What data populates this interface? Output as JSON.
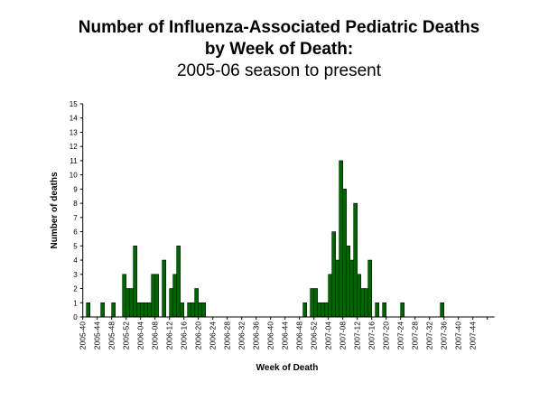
{
  "chart_data": {
    "type": "bar",
    "title": [
      "Number of Influenza-Associated Pediatric Deaths",
      "by Week of Death:"
    ],
    "subtitle": "2005-06 season to present",
    "xlabel": "Week of Death",
    "ylabel": "Number of deaths",
    "ylim": [
      0,
      15
    ],
    "y_ticks": [
      0,
      1,
      2,
      3,
      4,
      5,
      6,
      7,
      8,
      9,
      10,
      11,
      12,
      13,
      14,
      15
    ],
    "grid": false,
    "bar_color": "#006600",
    "x_tick_labels": [
      "2005-40",
      "2005-44",
      "2005-48",
      "2005-52",
      "2006-04",
      "2006-08",
      "2006-12",
      "2006-16",
      "2006-20",
      "2006-24",
      "2006-28",
      "2006-32",
      "2006-36",
      "2006-40",
      "2006-44",
      "2006-48",
      "2006-52",
      "2007-04",
      "2007-08",
      "2007-12",
      "2007-16",
      "2007-20",
      "2007-24",
      "2007-28",
      "2007-32",
      "2007-36",
      "2007-40",
      "2007-44"
    ],
    "weeks": [
      "2005-40",
      "2005-41",
      "2005-42",
      "2005-43",
      "2005-44",
      "2005-45",
      "2005-46",
      "2005-47",
      "2005-48",
      "2005-49",
      "2005-50",
      "2005-51",
      "2005-52",
      "2006-01",
      "2006-02",
      "2006-03",
      "2006-04",
      "2006-05",
      "2006-06",
      "2006-07",
      "2006-08",
      "2006-09",
      "2006-10",
      "2006-11",
      "2006-12",
      "2006-13",
      "2006-14",
      "2006-15",
      "2006-16",
      "2006-17",
      "2006-18",
      "2006-19",
      "2006-20",
      "2006-21",
      "2006-22",
      "2006-23",
      "2006-24",
      "2006-25",
      "2006-26",
      "2006-27",
      "2006-28",
      "2006-29",
      "2006-30",
      "2006-31",
      "2006-32",
      "2006-33",
      "2006-34",
      "2006-35",
      "2006-36",
      "2006-37",
      "2006-38",
      "2006-39",
      "2006-40",
      "2006-41",
      "2006-42",
      "2006-43",
      "2006-44",
      "2006-45",
      "2006-46",
      "2006-47",
      "2006-48",
      "2006-49",
      "2006-50",
      "2006-51",
      "2006-52",
      "2007-01",
      "2007-02",
      "2007-03",
      "2007-04",
      "2007-05",
      "2007-06",
      "2007-07",
      "2007-08",
      "2007-09",
      "2007-10",
      "2007-11",
      "2007-12",
      "2007-13",
      "2007-14",
      "2007-15",
      "2007-16",
      "2007-17",
      "2007-18",
      "2007-19",
      "2007-20",
      "2007-21",
      "2007-22",
      "2007-23",
      "2007-24",
      "2007-25",
      "2007-26",
      "2007-27",
      "2007-28",
      "2007-29",
      "2007-30",
      "2007-31",
      "2007-32",
      "2007-33",
      "2007-34",
      "2007-35",
      "2007-36",
      "2007-37",
      "2007-38",
      "2007-39",
      "2007-40",
      "2007-41",
      "2007-42",
      "2007-43",
      "2007-44",
      "2007-45",
      "2007-46",
      "2007-47",
      "2007-48",
      "2007-49"
    ],
    "values": [
      0,
      1,
      0,
      0,
      0,
      1,
      0,
      0,
      1,
      0,
      0,
      3,
      2,
      2,
      5,
      1,
      1,
      1,
      1,
      3,
      3,
      0,
      4,
      0,
      2,
      3,
      5,
      1,
      0,
      1,
      1,
      2,
      1,
      1,
      0,
      0,
      0,
      0,
      0,
      0,
      0,
      0,
      0,
      0,
      0,
      0,
      0,
      0,
      0,
      0,
      0,
      0,
      0,
      0,
      0,
      0,
      0,
      0,
      0,
      0,
      0,
      1,
      0,
      2,
      2,
      1,
      1,
      1,
      3,
      6,
      4,
      11,
      9,
      5,
      4,
      8,
      3,
      2,
      2,
      4,
      0,
      1,
      0,
      1,
      0,
      0,
      0,
      0,
      1,
      0,
      0,
      0,
      0,
      0,
      0,
      0,
      0,
      0,
      0,
      1,
      0,
      0,
      0,
      0,
      0,
      0,
      0,
      0,
      0,
      0,
      0,
      0,
      0,
      0
    ]
  }
}
